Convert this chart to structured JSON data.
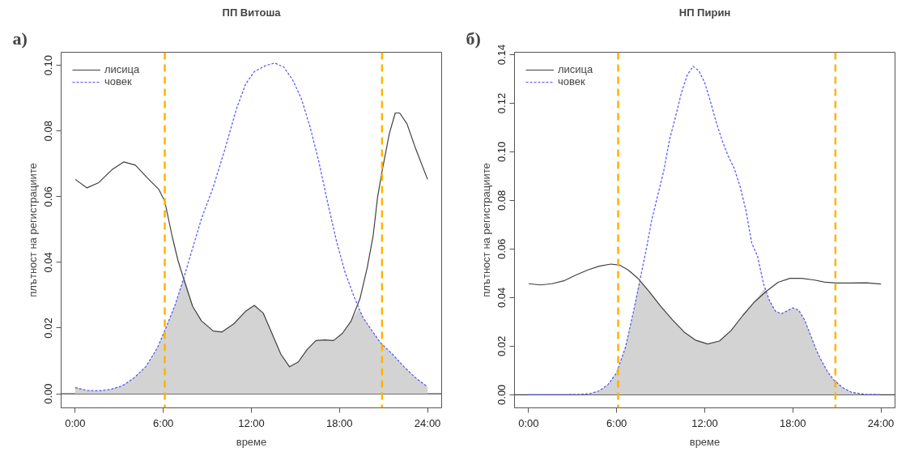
{
  "chart_data": [
    {
      "type": "line",
      "title": "ПП Витоша",
      "xlabel": "време",
      "ylabel": "плътност на регистрациите",
      "annotations": [
        "а)"
      ],
      "xlim": [
        -0.96,
        24.96
      ],
      "ylim": [
        -0.0043,
        0.104
      ],
      "xticks": [
        {
          "value": 0,
          "label": "0:00"
        },
        {
          "value": 6,
          "label": "6:00"
        },
        {
          "value": 12,
          "label": "12:00"
        },
        {
          "value": 18,
          "label": "18:00"
        },
        {
          "value": 24,
          "label": "24:00"
        }
      ],
      "yticks": [
        {
          "value": 0,
          "label": "0.00"
        },
        {
          "value": 0.02,
          "label": "0.02"
        },
        {
          "value": 0.04,
          "label": "0.04"
        },
        {
          "value": 0.06,
          "label": "0.06"
        },
        {
          "value": 0.08,
          "label": "0.08"
        },
        {
          "value": 0.1,
          "label": "0.10"
        }
      ],
      "grid": false,
      "legend": "top left",
      "series": [
        {
          "type": "area",
          "color": "#d3d3d3",
          "x": [
            0,
            0.8,
            1.6,
            2.4,
            3.2,
            4.0,
            4.8,
            5.6,
            6.2,
            6.8,
            7.4,
            7.5,
            8.0,
            8.6,
            9.4,
            10.0,
            10.8,
            11.6,
            12.2,
            12.8,
            13.4,
            14.0,
            14.6,
            15.2,
            15.8,
            16.4,
            17.0,
            17.6,
            18.2,
            18.8,
            19.3,
            19.6,
            20.2,
            20.8,
            21.6,
            22.4,
            23.2,
            24
          ],
          "values": [
            0.0019,
            0.001,
            0.0009,
            0.0013,
            0.0024,
            0.0048,
            0.0082,
            0.014,
            0.0203,
            0.027,
            0.0353,
            0.0345,
            0.0266,
            0.0222,
            0.0191,
            0.0188,
            0.0213,
            0.0251,
            0.0269,
            0.0246,
            0.0184,
            0.0121,
            0.0082,
            0.0097,
            0.0135,
            0.0162,
            0.0164,
            0.0162,
            0.0184,
            0.0222,
            0.026,
            0.0232,
            0.0193,
            0.0155,
            0.0121,
            0.0082,
            0.0048,
            0.0021
          ]
        },
        {
          "name": "лисица",
          "color": "#404040",
          "line_style": "solid",
          "x": [
            0,
            0.8,
            1.6,
            2.5,
            3.3,
            4.1,
            4.9,
            5.7,
            6.1,
            6.6,
            7.0,
            7.4,
            8.0,
            8.6,
            9.4,
            10.0,
            10.8,
            11.6,
            12.2,
            12.8,
            13.4,
            14.0,
            14.6,
            15.2,
            15.8,
            16.4,
            17.0,
            17.6,
            18.2,
            18.8,
            19.4,
            19.9,
            20.3,
            20.6,
            20.9,
            21.4,
            21.8,
            22.1,
            22.6,
            23.2,
            24
          ],
          "values": [
            0.0653,
            0.0627,
            0.0643,
            0.0682,
            0.0706,
            0.0696,
            0.0658,
            0.0622,
            0.0586,
            0.048,
            0.0406,
            0.0348,
            0.0266,
            0.0222,
            0.0191,
            0.0188,
            0.0213,
            0.0251,
            0.0269,
            0.0246,
            0.0184,
            0.0121,
            0.0082,
            0.0097,
            0.0135,
            0.0162,
            0.0164,
            0.0162,
            0.0184,
            0.0222,
            0.029,
            0.0386,
            0.0483,
            0.06,
            0.0677,
            0.0793,
            0.0855,
            0.0855,
            0.0822,
            0.0745,
            0.0653
          ]
        },
        {
          "name": "човек",
          "color": "#5050ff",
          "line_style": "dashed",
          "x": [
            0,
            0.8,
            1.6,
            2.4,
            3.2,
            4.0,
            4.8,
            5.6,
            6.2,
            6.8,
            7.4,
            8.0,
            8.6,
            9.4,
            10.2,
            11.0,
            11.6,
            12.2,
            13.0,
            13.6,
            14.2,
            14.8,
            15.4,
            16.0,
            16.6,
            17.2,
            17.8,
            18.4,
            19.0,
            19.6,
            20.2,
            20.8,
            21.6,
            22.4,
            23.2,
            24
          ],
          "values": [
            0.0019,
            0.001,
            0.0009,
            0.0013,
            0.0024,
            0.0048,
            0.0082,
            0.014,
            0.0203,
            0.027,
            0.0353,
            0.0444,
            0.0533,
            0.0629,
            0.0745,
            0.087,
            0.0942,
            0.0981,
            0.1,
            0.1007,
            0.0995,
            0.0957,
            0.0899,
            0.0812,
            0.0706,
            0.0581,
            0.0464,
            0.0367,
            0.0295,
            0.0232,
            0.0193,
            0.0155,
            0.0121,
            0.0082,
            0.0048,
            0.0021
          ]
        }
      ],
      "ref_lines": [
        {
          "axis": "y",
          "value": 0,
          "color": "#404040",
          "line_style": "solid"
        },
        {
          "axis": "x",
          "value": 6.1,
          "color": "#ffb300",
          "line_style": "dashed"
        },
        {
          "axis": "x",
          "value": 20.9,
          "color": "#ffb300",
          "line_style": "dashed"
        }
      ]
    },
    {
      "type": "line",
      "title": "НП Пирин",
      "xlabel": "време",
      "ylabel": "плътност на регистрациите",
      "annotations": [
        "б)"
      ],
      "xlim": [
        -0.96,
        24.96
      ],
      "ylim": [
        -0.0054,
        0.141
      ],
      "xticks": [
        {
          "value": 0,
          "label": "0:00"
        },
        {
          "value": 6,
          "label": "6:00"
        },
        {
          "value": 12,
          "label": "12:00"
        },
        {
          "value": 18,
          "label": "18:00"
        },
        {
          "value": 24,
          "label": "24:00"
        }
      ],
      "yticks": [
        {
          "value": 0,
          "label": "0.00"
        },
        {
          "value": 0.02,
          "label": "0.02"
        },
        {
          "value": 0.04,
          "label": "0.04"
        },
        {
          "value": 0.06,
          "label": "0.06"
        },
        {
          "value": 0.08,
          "label": "0.08"
        },
        {
          "value": 0.1,
          "label": "0.10"
        },
        {
          "value": 0.12,
          "label": "0.12"
        },
        {
          "value": 0.14,
          "label": "0.14"
        }
      ],
      "grid": false,
      "legend": "top left",
      "series": [
        {
          "type": "area",
          "color": "#d3d3d3",
          "x": [
            0,
            2.4,
            3.4,
            4.2,
            4.8,
            5.4,
            6.0,
            6.6,
            7.2,
            7.55,
            8.2,
            9.0,
            9.8,
            10.6,
            11.4,
            12.2,
            13.0,
            13.8,
            14.6,
            15.4,
            16.1,
            16.4,
            16.8,
            17.2,
            17.6,
            18.0,
            18.4,
            18.8,
            19.2,
            19.6,
            20.0,
            20.4,
            20.8,
            21.4,
            22.0,
            23.0,
            24
          ],
          "values": [
            0,
            0,
            0.0001,
            0.0005,
            0.0016,
            0.0041,
            0.0091,
            0.0196,
            0.0358,
            0.047,
            0.0426,
            0.0364,
            0.0308,
            0.0258,
            0.0224,
            0.0209,
            0.0221,
            0.0265,
            0.0327,
            0.0383,
            0.044,
            0.0389,
            0.0345,
            0.0333,
            0.0345,
            0.0358,
            0.0348,
            0.0308,
            0.0246,
            0.0184,
            0.0134,
            0.0091,
            0.006,
            0.0029,
            0.001,
            0.0001,
            0
          ]
        },
        {
          "name": "лисица",
          "color": "#404040",
          "line_style": "solid",
          "x": [
            0,
            0.8,
            1.6,
            2.4,
            3.2,
            4.0,
            4.8,
            5.6,
            6.2,
            6.8,
            7.5,
            8.2,
            9.0,
            9.8,
            10.6,
            11.4,
            12.2,
            13.0,
            13.8,
            14.6,
            15.4,
            16.2,
            17.0,
            17.8,
            18.6,
            19.4,
            20.2,
            21.0,
            22.0,
            23.0,
            24
          ],
          "values": [
            0.0457,
            0.0452,
            0.0457,
            0.0469,
            0.0492,
            0.0513,
            0.0529,
            0.0538,
            0.0534,
            0.0513,
            0.0476,
            0.0426,
            0.0364,
            0.0308,
            0.0258,
            0.0224,
            0.0209,
            0.0221,
            0.0265,
            0.0327,
            0.0383,
            0.0426,
            0.0463,
            0.0479,
            0.0479,
            0.0473,
            0.0463,
            0.046,
            0.046,
            0.0461,
            0.0456
          ]
        },
        {
          "name": "човек",
          "color": "#5050ff",
          "line_style": "dashed",
          "x": [
            0,
            2.4,
            3.4,
            4.2,
            4.8,
            5.4,
            6.0,
            6.6,
            7.2,
            7.6,
            8.0,
            8.4,
            8.8,
            9.2,
            9.6,
            10.0,
            10.4,
            10.8,
            11.2,
            11.6,
            12.0,
            12.4,
            12.8,
            13.2,
            13.6,
            14.0,
            14.4,
            14.8,
            15.2,
            15.6,
            16.0,
            16.4,
            16.8,
            17.2,
            17.6,
            18.0,
            18.4,
            18.8,
            19.2,
            19.6,
            20.0,
            20.4,
            20.8,
            21.4,
            22.0,
            23.0,
            24
          ],
          "values": [
            0,
            0,
            0.0001,
            0.0005,
            0.0016,
            0.0041,
            0.0091,
            0.0196,
            0.0358,
            0.0476,
            0.0594,
            0.0723,
            0.0822,
            0.092,
            0.105,
            0.1142,
            0.1241,
            0.1315,
            0.1352,
            0.1333,
            0.1284,
            0.1204,
            0.1118,
            0.1044,
            0.0982,
            0.0933,
            0.0859,
            0.076,
            0.0625,
            0.0569,
            0.0457,
            0.0389,
            0.0345,
            0.0333,
            0.0345,
            0.0358,
            0.0348,
            0.0308,
            0.0246,
            0.0184,
            0.0134,
            0.0091,
            0.006,
            0.0029,
            0.001,
            0.0001,
            0
          ]
        }
      ],
      "ref_lines": [
        {
          "axis": "y",
          "value": 0,
          "color": "#404040",
          "line_style": "solid"
        },
        {
          "axis": "x",
          "value": 6.1,
          "color": "#ffb300",
          "line_style": "dashed"
        },
        {
          "axis": "x",
          "value": 20.9,
          "color": "#ffb300",
          "line_style": "dashed"
        }
      ]
    }
  ]
}
